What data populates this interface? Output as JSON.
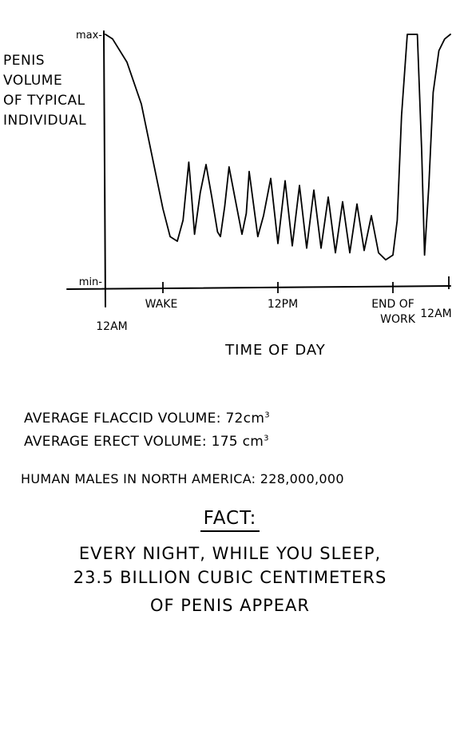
{
  "chart_data": {
    "type": "line",
    "ylabel_lines": [
      "PENIS",
      "VOLUME",
      "OF TYPICAL",
      "INDIVIDUAL"
    ],
    "xlabel": "TIME OF DAY",
    "y_ticks": [
      "max-",
      "min-"
    ],
    "x_ticks": [
      "12AM",
      "WAKE",
      "12PM",
      "END OF WORK",
      "12AM"
    ],
    "x_tick_positions": [
      0,
      4,
      12,
      20,
      24
    ],
    "xlim": [
      0,
      24
    ],
    "ylim": [
      0,
      1
    ],
    "series": [
      {
        "x": [
          0,
          0.5,
          1.5,
          2.5,
          3.5,
          4.0,
          4.5,
          5.0,
          5.4,
          5.8,
          6.0,
          6.2,
          6.6,
          7.0,
          7.4,
          7.8,
          8.0,
          8.3,
          8.6,
          9.0,
          9.5,
          9.8,
          10.0,
          10.6,
          11.0,
          11.5,
          12.0,
          12.5,
          13.0,
          13.5,
          14.0,
          14.5,
          15.0,
          15.5,
          16.0,
          16.5,
          17.0,
          17.5,
          18.0,
          18.5,
          19.0,
          19.5,
          20.0,
          20.3,
          20.6,
          21.0,
          21.7,
          22.0,
          22.2,
          22.5,
          22.8,
          23.2,
          23.6,
          24.0
        ],
        "y": [
          1.0,
          0.98,
          0.88,
          0.7,
          0.4,
          0.25,
          0.13,
          0.11,
          0.2,
          0.45,
          0.3,
          0.14,
          0.32,
          0.44,
          0.3,
          0.15,
          0.13,
          0.26,
          0.43,
          0.3,
          0.14,
          0.23,
          0.41,
          0.13,
          0.22,
          0.38,
          0.1,
          0.37,
          0.09,
          0.35,
          0.08,
          0.33,
          0.08,
          0.3,
          0.06,
          0.28,
          0.06,
          0.27,
          0.07,
          0.22,
          0.06,
          0.03,
          0.05,
          0.2,
          0.65,
          1.0,
          1.0,
          0.5,
          0.05,
          0.35,
          0.75,
          0.93,
          0.98,
          1.0
        ]
      }
    ]
  },
  "stats": {
    "flaccid": {
      "label": "AVERAGE FLACCID VOLUME:",
      "value": "72",
      "unit": "cm",
      "exp": "3"
    },
    "erect": {
      "label": "AVERAGE ERECT VOLUME:",
      "value": "175",
      "unit": "cm",
      "exp": "3"
    },
    "males": "HUMAN MALES IN NORTH AMERICA: 228,000,000"
  },
  "fact": {
    "title": "FACT:",
    "lines": [
      "EVERY NIGHT, WHILE YOU SLEEP,",
      "23.5 BILLION CUBIC CENTIMETERS",
      "OF PENIS APPEAR"
    ]
  }
}
